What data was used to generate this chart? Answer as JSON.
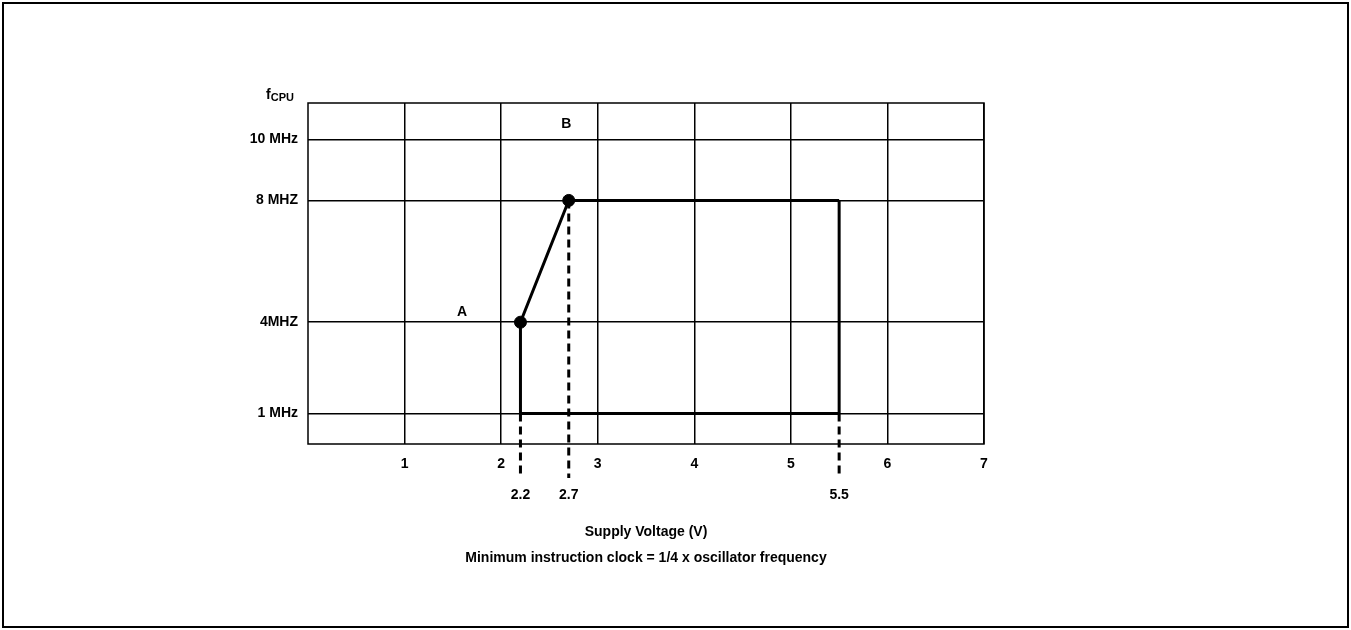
{
  "chart_data": {
    "type": "line",
    "ylabel": "f$_{CPU}$",
    "xlabel": "Supply Voltage (V)",
    "xlim": [
      0,
      7
    ],
    "xticks": [
      1,
      2,
      3,
      4,
      5,
      6,
      7
    ],
    "ylim": [
      0,
      11.2
    ],
    "yticks": [
      {
        "value": 1,
        "label": "1 MHz"
      },
      {
        "value": 4,
        "label": "4MHZ"
      },
      {
        "value": 8,
        "label": "8 MHZ"
      },
      {
        "value": 10,
        "label": "10 MHz"
      }
    ],
    "grid": true,
    "legend": false,
    "series": [
      {
        "color": "#000000",
        "marker": "none",
        "x": [
          2.2,
          2.7,
          5.5
        ],
        "values": [
          4,
          8,
          8
        ]
      },
      {
        "color": "#000000",
        "marker": "none",
        "x": [
          2.2,
          5.5
        ],
        "values": [
          1,
          1
        ]
      },
      {
        "color": "#000000",
        "marker": "none",
        "x": [
          2.2,
          2.2
        ],
        "values": [
          1,
          4
        ]
      },
      {
        "color": "#000000",
        "marker": "none",
        "x": [
          5.5,
          5.5
        ],
        "values": [
          1,
          8
        ]
      },
      {
        "type": "scatter",
        "color": "#000000",
        "marker": "circle",
        "x": [
          2.2,
          2.7
        ],
        "values": [
          4,
          8
        ]
      }
    ],
    "ref_lines": [
      {
        "axis": "x",
        "value": 2.2,
        "label": "2.2",
        "line_style": "dashed"
      },
      {
        "axis": "x",
        "value": 2.7,
        "label": "2.7",
        "line_style": "dashed"
      },
      {
        "axis": "x",
        "value": 5.5,
        "label": "5.5",
        "line_style": "dashed"
      }
    ],
    "annotations": [
      "A",
      "B",
      "Minimum instruction clock = 1/4 x oscillator frequency"
    ]
  }
}
